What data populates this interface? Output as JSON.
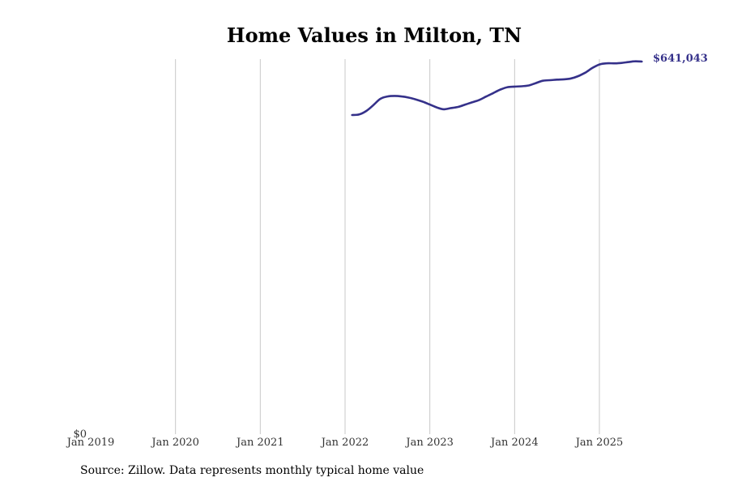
{
  "chart_data": {
    "type": "line",
    "title": "Home Values in Milton, TN",
    "xlabel": "",
    "ylabel": "",
    "xlim": [
      "2019-01",
      "2025-08"
    ],
    "ylim": [
      0,
      641043
    ],
    "x_ticks": [
      "Jan 2019",
      "Jan 2020",
      "Jan 2021",
      "Jan 2022",
      "Jan 2023",
      "Jan 2024",
      "Jan 2025"
    ],
    "y_ticks": [
      "$0"
    ],
    "grid": "vertical",
    "line_color": "#35318a",
    "end_label": "$641,043",
    "series": [
      {
        "x": [
          "2022-02",
          "2022-03",
          "2022-04",
          "2022-05",
          "2022-06",
          "2022-07",
          "2022-08",
          "2022-09",
          "2022-10",
          "2022-11",
          "2022-12",
          "2023-01",
          "2023-02",
          "2023-03",
          "2023-04",
          "2023-05",
          "2023-06",
          "2023-07",
          "2023-08",
          "2023-09",
          "2023-10",
          "2023-11",
          "2023-12",
          "2024-01",
          "2024-02",
          "2024-03",
          "2024-04",
          "2024-05",
          "2024-06",
          "2024-07",
          "2024-08",
          "2024-09",
          "2024-10",
          "2024-11",
          "2024-12",
          "2025-01",
          "2025-02",
          "2025-03",
          "2025-04",
          "2025-05",
          "2025-06",
          "2025-07"
        ],
        "y": [
          549000,
          550000,
          556000,
          566000,
          577000,
          581000,
          582000,
          581000,
          579000,
          576000,
          572000,
          567000,
          562000,
          559000,
          561000,
          563000,
          567000,
          571000,
          575000,
          581000,
          587000,
          593000,
          597000,
          598000,
          598500,
          600000,
          604000,
          608000,
          609000,
          610000,
          610500,
          612000,
          616000,
          622000,
          630000,
          636000,
          638000,
          638000,
          638500,
          640000,
          641500,
          641043
        ]
      }
    ]
  },
  "source_text": "Source: Zillow. Data represents monthly typical home value"
}
